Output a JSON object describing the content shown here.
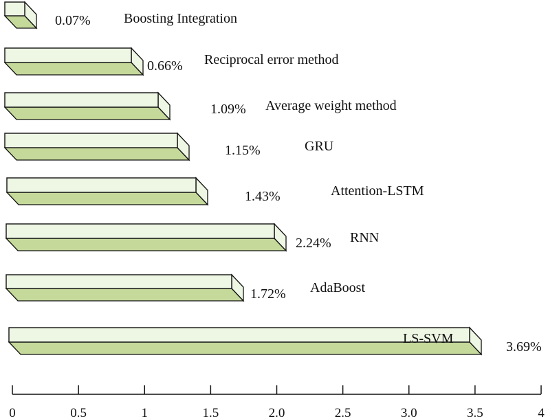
{
  "chart_data": {
    "type": "bar",
    "orientation": "horizontal",
    "style": "3d",
    "title": "",
    "xlabel": "",
    "ylabel": "",
    "xlim": [
      0,
      4
    ],
    "xticks": [
      0,
      0.5,
      1,
      1.5,
      2.0,
      2.5,
      3.0,
      3.5,
      4
    ],
    "xtick_labels": [
      "0",
      "0.5",
      "1",
      "1.5",
      "2.0",
      "2.5",
      "3.0",
      "3.5",
      "4"
    ],
    "categories": [
      "Boosting Integration",
      "Reciprocal error method",
      "Average weight method",
      "GRU",
      "Attention-LSTM",
      "RNN",
      "AdaBoost",
      "LS-SVM"
    ],
    "values": [
      0.07,
      0.66,
      1.09,
      1.15,
      1.43,
      2.24,
      1.72,
      3.69
    ],
    "value_labels": [
      "0.07%",
      "0.66%",
      "1.09%",
      "1.15%",
      "1.43%",
      "2.24%",
      "1.72%",
      "3.69%"
    ],
    "grid": false,
    "colors": {
      "face": "#eef6e4",
      "bottom": "#c5d99b",
      "stroke": "#111111"
    }
  }
}
